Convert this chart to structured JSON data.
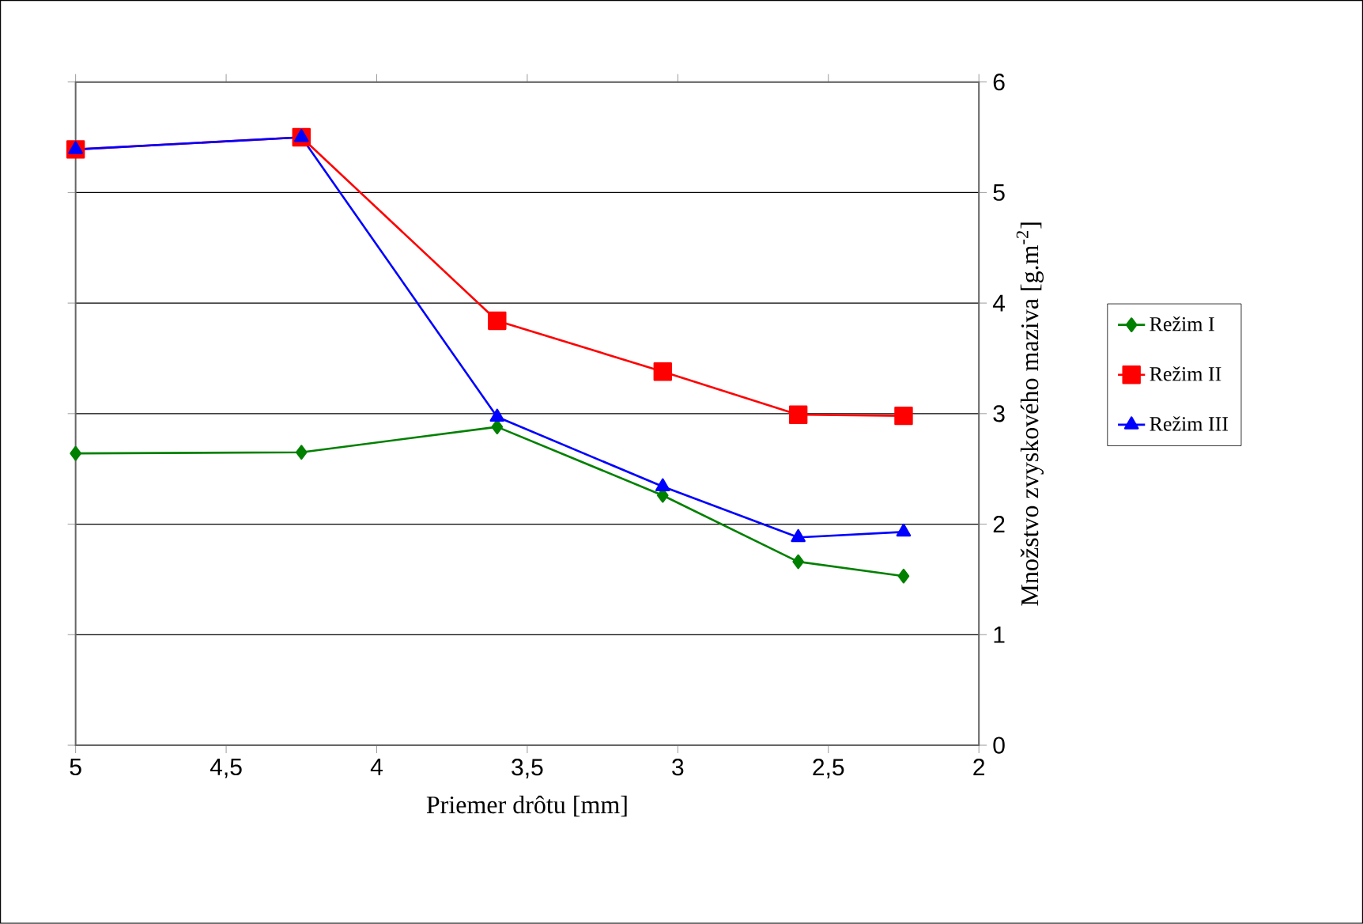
{
  "chart_data": {
    "type": "line",
    "xlabel": "Priemer drôtu [mm]",
    "ylabel": "Množstvo zvyskového maziva [g.m$^{-2}$]",
    "x": [
      5,
      4.25,
      3.6,
      3.05,
      2.6,
      2.25
    ],
    "series": [
      {
        "name": "Režim I",
        "color": "#008000",
        "marker": "diamond",
        "values": [
          2.64,
          2.65,
          2.88,
          2.26,
          1.66,
          1.53
        ]
      },
      {
        "name": "Režim II",
        "color": "#ff0000",
        "marker": "square",
        "values": [
          5.39,
          5.5,
          3.84,
          3.38,
          2.99,
          2.98
        ]
      },
      {
        "name": "Režim III",
        "color": "#0000ff",
        "marker": "triangle",
        "values": [
          5.39,
          5.5,
          2.97,
          2.34,
          1.88,
          1.93
        ]
      }
    ],
    "xlim": [
      5,
      2
    ],
    "ylim": [
      0,
      6
    ],
    "xticks": [
      5,
      {
        "value": 4.5,
        "label": "4,5"
      },
      4,
      {
        "value": 3.5,
        "label": "3,5"
      },
      3,
      {
        "value": 2.5,
        "label": "2,5"
      },
      2
    ],
    "yticks": [
      0,
      1,
      2,
      3,
      4,
      5,
      6
    ],
    "grid": "y",
    "legend": "right",
    "line_style": "solid"
  }
}
